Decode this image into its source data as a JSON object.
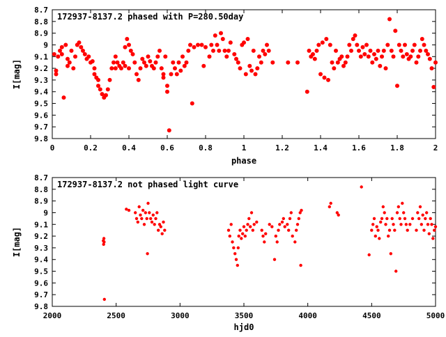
{
  "chart_data": [
    {
      "type": "scatter",
      "title": "172937-8137.2 phased with P=280.50day",
      "xlabel": "phase",
      "ylabel": "I[mag]",
      "xlim": [
        0,
        2
      ],
      "ylim": [
        8.7,
        9.8
      ],
      "y_inverted": true,
      "grid": false,
      "marker_color": "#ff0000",
      "xticks": [
        "0",
        "0.2",
        "0.4",
        "0.6",
        "0.8",
        "1",
        "1.2",
        "1.4",
        "1.6",
        "1.8",
        "2"
      ],
      "yticks": [
        "8.7",
        "8.8",
        "8.9",
        "9",
        "9.1",
        "9.2",
        "9.3",
        "9.4",
        "9.5",
        "9.6",
        "9.7",
        "9.8"
      ],
      "points": [
        [
          0.01,
          9.08
        ],
        [
          0.02,
          9.22
        ],
        [
          0.02,
          9.25
        ],
        [
          0.03,
          9.1
        ],
        [
          0.04,
          9.05
        ],
        [
          0.05,
          9.02
        ],
        [
          0.05,
          9.08
        ],
        [
          0.06,
          9.45
        ],
        [
          0.07,
          9.0
        ],
        [
          0.08,
          9.12
        ],
        [
          0.08,
          9.18
        ],
        [
          0.09,
          9.15
        ],
        [
          0.1,
          9.05
        ],
        [
          0.11,
          9.2
        ],
        [
          0.12,
          9.1
        ],
        [
          0.13,
          9.0
        ],
        [
          0.14,
          8.98
        ],
        [
          0.15,
          9.02
        ],
        [
          0.16,
          9.05
        ],
        [
          0.17,
          9.08
        ],
        [
          0.18,
          9.12
        ],
        [
          0.19,
          9.1
        ],
        [
          0.2,
          9.15
        ],
        [
          0.21,
          9.14
        ],
        [
          0.22,
          9.2
        ],
        [
          0.22,
          9.25
        ],
        [
          0.23,
          9.28
        ],
        [
          0.24,
          9.3
        ],
        [
          0.24,
          9.35
        ],
        [
          0.25,
          9.38
        ],
        [
          0.26,
          9.42
        ],
        [
          0.27,
          9.45
        ],
        [
          0.28,
          9.43
        ],
        [
          0.29,
          9.38
        ],
        [
          0.3,
          9.3
        ],
        [
          0.31,
          9.2
        ],
        [
          0.32,
          9.15
        ],
        [
          0.33,
          9.1
        ],
        [
          0.33,
          9.2
        ],
        [
          0.34,
          9.15
        ],
        [
          0.35,
          9.18
        ],
        [
          0.36,
          9.2
        ],
        [
          0.37,
          9.15
        ],
        [
          0.38,
          9.02
        ],
        [
          0.38,
          9.18
        ],
        [
          0.39,
          8.95
        ],
        [
          0.4,
          9.0
        ],
        [
          0.4,
          9.2
        ],
        [
          0.41,
          9.05
        ],
        [
          0.42,
          9.08
        ],
        [
          0.43,
          9.15
        ],
        [
          0.44,
          9.25
        ],
        [
          0.45,
          9.3
        ],
        [
          0.46,
          9.2
        ],
        [
          0.47,
          9.12
        ],
        [
          0.48,
          9.15
        ],
        [
          0.49,
          9.18
        ],
        [
          0.5,
          9.1
        ],
        [
          0.51,
          9.14
        ],
        [
          0.52,
          9.18
        ],
        [
          0.53,
          9.2
        ],
        [
          0.54,
          9.15
        ],
        [
          0.55,
          9.1
        ],
        [
          0.56,
          9.05
        ],
        [
          0.57,
          9.2
        ],
        [
          0.58,
          9.25
        ],
        [
          0.58,
          9.28
        ],
        [
          0.59,
          9.1
        ],
        [
          0.6,
          9.35
        ],
        [
          0.6,
          9.4
        ],
        [
          0.61,
          9.73
        ],
        [
          0.62,
          9.25
        ],
        [
          0.63,
          9.15
        ],
        [
          0.64,
          9.2
        ],
        [
          0.65,
          9.25
        ],
        [
          0.66,
          9.15
        ],
        [
          0.67,
          9.22
        ],
        [
          0.68,
          9.1
        ],
        [
          0.69,
          9.18
        ],
        [
          0.7,
          9.15
        ],
        [
          0.71,
          9.05
        ],
        [
          0.72,
          9.0
        ],
        [
          0.73,
          9.5
        ],
        [
          0.74,
          9.02
        ],
        [
          0.76,
          9.0
        ],
        [
          0.78,
          9.0
        ],
        [
          0.79,
          9.18
        ],
        [
          0.8,
          9.02
        ],
        [
          0.82,
          9.1
        ],
        [
          0.83,
          9.0
        ],
        [
          0.84,
          9.05
        ],
        [
          0.85,
          8.92
        ],
        [
          0.86,
          9.0
        ],
        [
          0.87,
          9.05
        ],
        [
          0.88,
          8.9
        ],
        [
          0.89,
          8.95
        ],
        [
          0.9,
          9.05
        ],
        [
          0.91,
          9.1
        ],
        [
          0.92,
          9.05
        ],
        [
          0.93,
          8.98
        ],
        [
          0.95,
          9.08
        ],
        [
          0.96,
          9.12
        ],
        [
          0.97,
          9.15
        ],
        [
          0.98,
          9.2
        ],
        [
          0.99,
          9.0
        ],
        [
          1.0,
          8.98
        ],
        [
          1.01,
          9.25
        ],
        [
          1.02,
          8.95
        ],
        [
          1.03,
          9.18
        ],
        [
          1.04,
          9.22
        ],
        [
          1.05,
          9.05
        ],
        [
          1.06,
          9.25
        ],
        [
          1.07,
          9.2
        ],
        [
          1.08,
          9.1
        ],
        [
          1.09,
          9.15
        ],
        [
          1.1,
          9.05
        ],
        [
          1.11,
          9.08
        ],
        [
          1.12,
          9.0
        ],
        [
          1.13,
          9.05
        ],
        [
          1.15,
          9.15
        ],
        [
          1.23,
          9.15
        ],
        [
          1.28,
          9.15
        ],
        [
          1.33,
          9.4
        ],
        [
          1.34,
          9.05
        ],
        [
          1.35,
          9.1
        ],
        [
          1.36,
          9.08
        ],
        [
          1.37,
          9.12
        ],
        [
          1.38,
          9.05
        ],
        [
          1.39,
          9.0
        ],
        [
          1.4,
          9.25
        ],
        [
          1.41,
          8.98
        ],
        [
          1.42,
          9.28
        ],
        [
          1.43,
          8.95
        ],
        [
          1.44,
          9.3
        ],
        [
          1.45,
          9.0
        ],
        [
          1.46,
          9.15
        ],
        [
          1.47,
          9.2
        ],
        [
          1.48,
          9.05
        ],
        [
          1.49,
          9.15
        ],
        [
          1.5,
          9.12
        ],
        [
          1.51,
          9.1
        ],
        [
          1.52,
          9.18
        ],
        [
          1.53,
          9.15
        ],
        [
          1.54,
          9.1
        ],
        [
          1.55,
          9.0
        ],
        [
          1.56,
          9.05
        ],
        [
          1.57,
          8.95
        ],
        [
          1.58,
          8.92
        ],
        [
          1.59,
          9.0
        ],
        [
          1.6,
          9.05
        ],
        [
          1.61,
          9.1
        ],
        [
          1.62,
          9.02
        ],
        [
          1.63,
          9.08
        ],
        [
          1.64,
          9.0
        ],
        [
          1.65,
          9.1
        ],
        [
          1.66,
          9.05
        ],
        [
          1.67,
          9.15
        ],
        [
          1.68,
          9.08
        ],
        [
          1.69,
          9.12
        ],
        [
          1.7,
          9.05
        ],
        [
          1.71,
          9.18
        ],
        [
          1.72,
          9.1
        ],
        [
          1.73,
          9.05
        ],
        [
          1.74,
          9.2
        ],
        [
          1.75,
          9.0
        ],
        [
          1.76,
          8.78
        ],
        [
          1.77,
          9.05
        ],
        [
          1.78,
          9.1
        ],
        [
          1.79,
          8.88
        ],
        [
          1.8,
          9.35
        ],
        [
          1.81,
          9.0
        ],
        [
          1.82,
          9.05
        ],
        [
          1.83,
          9.1
        ],
        [
          1.84,
          9.0
        ],
        [
          1.85,
          9.08
        ],
        [
          1.86,
          9.12
        ],
        [
          1.87,
          9.1
        ],
        [
          1.88,
          9.05
        ],
        [
          1.89,
          9.0
        ],
        [
          1.9,
          9.15
        ],
        [
          1.91,
          9.1
        ],
        [
          1.92,
          9.05
        ],
        [
          1.93,
          8.95
        ],
        [
          1.94,
          9.0
        ],
        [
          1.95,
          9.05
        ],
        [
          1.96,
          9.08
        ],
        [
          1.97,
          9.12
        ],
        [
          1.98,
          9.2
        ],
        [
          1.99,
          9.36
        ],
        [
          2.0,
          9.15
        ]
      ]
    },
    {
      "type": "scatter",
      "title": "172937-8137.2 not phased light curve",
      "xlabel": "hjd0",
      "ylabel": "I[mag]",
      "xlim": [
        2000,
        5000
      ],
      "ylim": [
        8.7,
        9.8
      ],
      "y_inverted": true,
      "grid": false,
      "marker_color": "#ff0000",
      "xticks": [
        "2000",
        "2500",
        "3000",
        "3500",
        "4000",
        "4500",
        "5000"
      ],
      "yticks": [
        "8.7",
        "8.8",
        "8.9",
        "9",
        "9.1",
        "9.2",
        "9.3",
        "9.4",
        "9.5",
        "9.6",
        "9.7",
        "9.8"
      ],
      "points": [
        [
          2400,
          9.24
        ],
        [
          2402,
          9.27
        ],
        [
          2404,
          9.22
        ],
        [
          2406,
          9.25
        ],
        [
          2408,
          9.74
        ],
        [
          2580,
          8.97
        ],
        [
          2600,
          8.98
        ],
        [
          2650,
          9.0
        ],
        [
          2660,
          9.05
        ],
        [
          2670,
          9.08
        ],
        [
          2680,
          8.95
        ],
        [
          2690,
          9.02
        ],
        [
          2700,
          9.05
        ],
        [
          2710,
          8.98
        ],
        [
          2720,
          9.1
        ],
        [
          2730,
          9.0
        ],
        [
          2740,
          9.05
        ],
        [
          2745,
          9.35
        ],
        [
          2750,
          8.92
        ],
        [
          2760,
          9.0
        ],
        [
          2770,
          9.05
        ],
        [
          2780,
          9.08
        ],
        [
          2790,
          9.02
        ],
        [
          2800,
          9.1
        ],
        [
          2810,
          9.05
        ],
        [
          2820,
          9.0
        ],
        [
          2830,
          9.15
        ],
        [
          2840,
          9.1
        ],
        [
          2850,
          9.12
        ],
        [
          2860,
          9.18
        ],
        [
          2870,
          9.08
        ],
        [
          2880,
          9.15
        ],
        [
          3380,
          9.15
        ],
        [
          3390,
          9.2
        ],
        [
          3400,
          9.1
        ],
        [
          3410,
          9.25
        ],
        [
          3420,
          9.3
        ],
        [
          3430,
          9.35
        ],
        [
          3440,
          9.4
        ],
        [
          3450,
          9.45
        ],
        [
          3455,
          9.3
        ],
        [
          3460,
          9.2
        ],
        [
          3470,
          9.15
        ],
        [
          3480,
          9.22
        ],
        [
          3490,
          9.18
        ],
        [
          3500,
          9.12
        ],
        [
          3510,
          9.2
        ],
        [
          3520,
          9.15
        ],
        [
          3530,
          9.1
        ],
        [
          3540,
          9.05
        ],
        [
          3550,
          9.12
        ],
        [
          3560,
          9.0
        ],
        [
          3570,
          9.15
        ],
        [
          3580,
          9.1
        ],
        [
          3600,
          9.08
        ],
        [
          3640,
          9.15
        ],
        [
          3650,
          9.2
        ],
        [
          3660,
          9.25
        ],
        [
          3670,
          9.18
        ],
        [
          3700,
          9.1
        ],
        [
          3720,
          9.12
        ],
        [
          3740,
          9.4
        ],
        [
          3750,
          9.2
        ],
        [
          3760,
          9.25
        ],
        [
          3770,
          9.15
        ],
        [
          3780,
          9.1
        ],
        [
          3800,
          9.08
        ],
        [
          3810,
          9.05
        ],
        [
          3820,
          9.12
        ],
        [
          3840,
          9.1
        ],
        [
          3850,
          9.15
        ],
        [
          3860,
          9.05
        ],
        [
          3870,
          9.0
        ],
        [
          3880,
          9.2
        ],
        [
          3900,
          9.25
        ],
        [
          3910,
          9.15
        ],
        [
          3920,
          9.1
        ],
        [
          3930,
          9.05
        ],
        [
          3940,
          9.0
        ],
        [
          3945,
          9.45
        ],
        [
          3950,
          8.98
        ],
        [
          4170,
          8.95
        ],
        [
          4180,
          8.92
        ],
        [
          4230,
          9.0
        ],
        [
          4240,
          9.02
        ],
        [
          4420,
          8.78
        ],
        [
          4480,
          9.36
        ],
        [
          4500,
          9.15
        ],
        [
          4510,
          9.1
        ],
        [
          4520,
          9.05
        ],
        [
          4530,
          9.2
        ],
        [
          4540,
          9.12
        ],
        [
          4550,
          9.15
        ],
        [
          4560,
          9.22
        ],
        [
          4570,
          9.08
        ],
        [
          4580,
          9.05
        ],
        [
          4590,
          8.95
        ],
        [
          4600,
          9.0
        ],
        [
          4610,
          9.1
        ],
        [
          4620,
          9.05
        ],
        [
          4630,
          9.2
        ],
        [
          4640,
          9.15
        ],
        [
          4650,
          9.35
        ],
        [
          4660,
          9.05
        ],
        [
          4670,
          9.1
        ],
        [
          4680,
          9.15
        ],
        [
          4690,
          9.5
        ],
        [
          4700,
          9.0
        ],
        [
          4710,
          8.95
        ],
        [
          4720,
          9.05
        ],
        [
          4730,
          9.1
        ],
        [
          4740,
          8.92
        ],
        [
          4750,
          9.0
        ],
        [
          4760,
          9.05
        ],
        [
          4770,
          9.1
        ],
        [
          4780,
          9.15
        ],
        [
          4800,
          9.1
        ],
        [
          4820,
          9.05
        ],
        [
          4850,
          9.15
        ],
        [
          4860,
          9.0
        ],
        [
          4870,
          9.05
        ],
        [
          4880,
          8.95
        ],
        [
          4890,
          9.1
        ],
        [
          4900,
          9.02
        ],
        [
          4910,
          9.15
        ],
        [
          4920,
          9.05
        ],
        [
          4930,
          9.0
        ],
        [
          4940,
          9.1
        ],
        [
          4950,
          9.18
        ],
        [
          4960,
          9.05
        ],
        [
          4970,
          9.1
        ],
        [
          4980,
          9.22
        ],
        [
          4990,
          9.15
        ],
        [
          5000,
          9.12
        ]
      ]
    }
  ]
}
